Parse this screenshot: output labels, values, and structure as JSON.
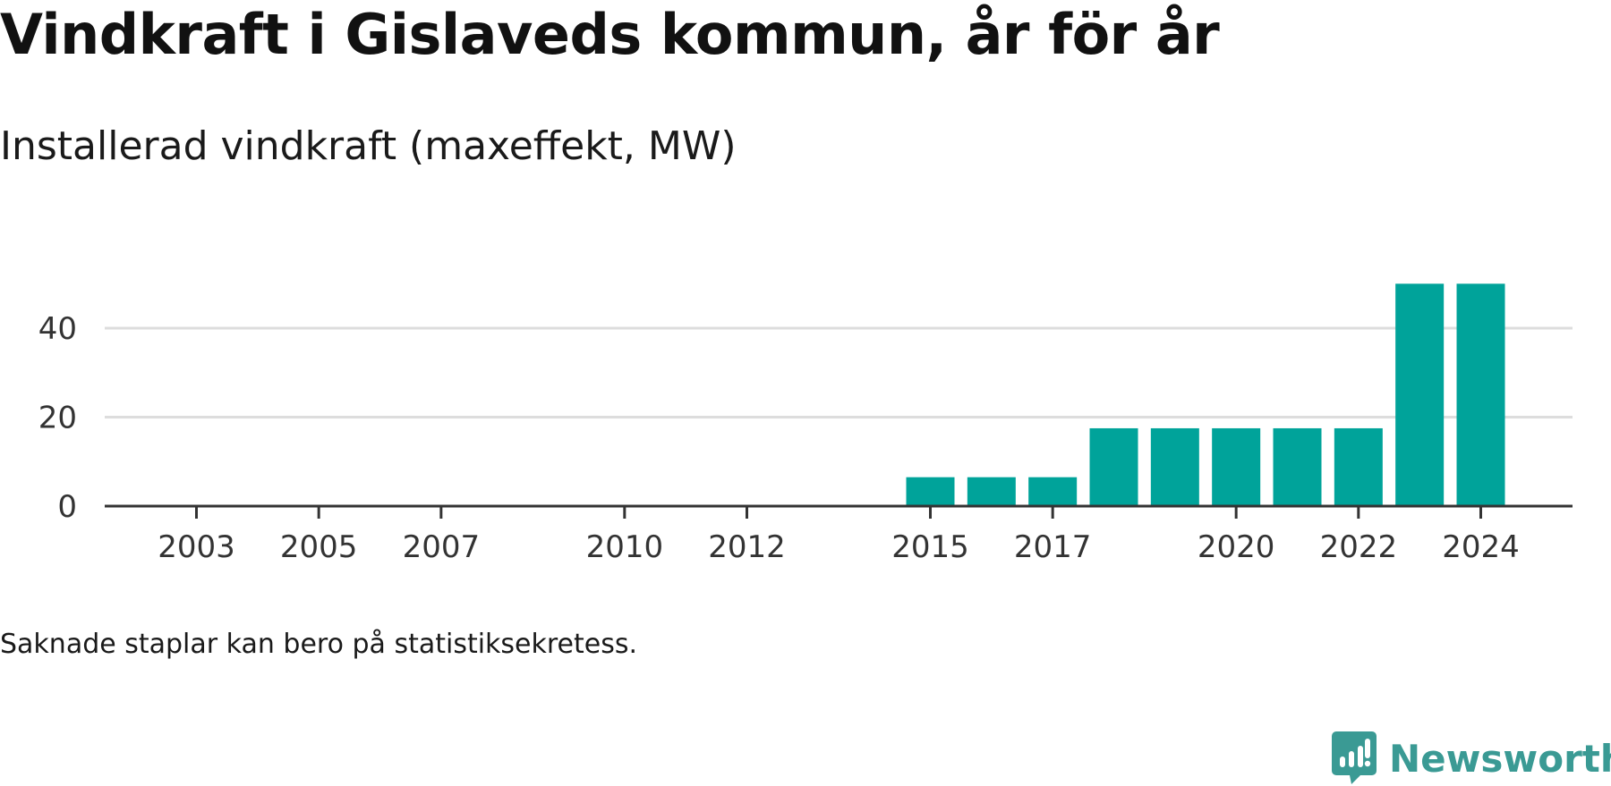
{
  "title": "Vindkraft i Gislaveds kommun, år för år",
  "subtitle": "Installerad vindkraft (maxeffekt, MW)",
  "footnote": "Saknade staplar kan bero på statistiksekretess.",
  "logo": {
    "text": "Newsworthy",
    "color": "#3a9a94"
  },
  "colors": {
    "bar": "#00a39a",
    "grid": "#dddddd",
    "axis": "#333333"
  },
  "chart_data": {
    "type": "bar",
    "x": [
      2015,
      2016,
      2017,
      2018,
      2019,
      2020,
      2021,
      2022,
      2023,
      2024
    ],
    "values": [
      6.5,
      6.5,
      6.5,
      17.5,
      17.5,
      17.5,
      17.5,
      17.5,
      50,
      50
    ],
    "x_tick_labels": [
      "2003",
      "2005",
      "2007",
      "2010",
      "2012",
      "2015",
      "2017",
      "2020",
      "2022",
      "2024"
    ],
    "y_ticks": [
      0,
      20,
      40
    ],
    "xlim": [
      2001.5,
      2025.5
    ],
    "ylim": [
      0,
      50
    ],
    "grid": true,
    "legend": false
  }
}
